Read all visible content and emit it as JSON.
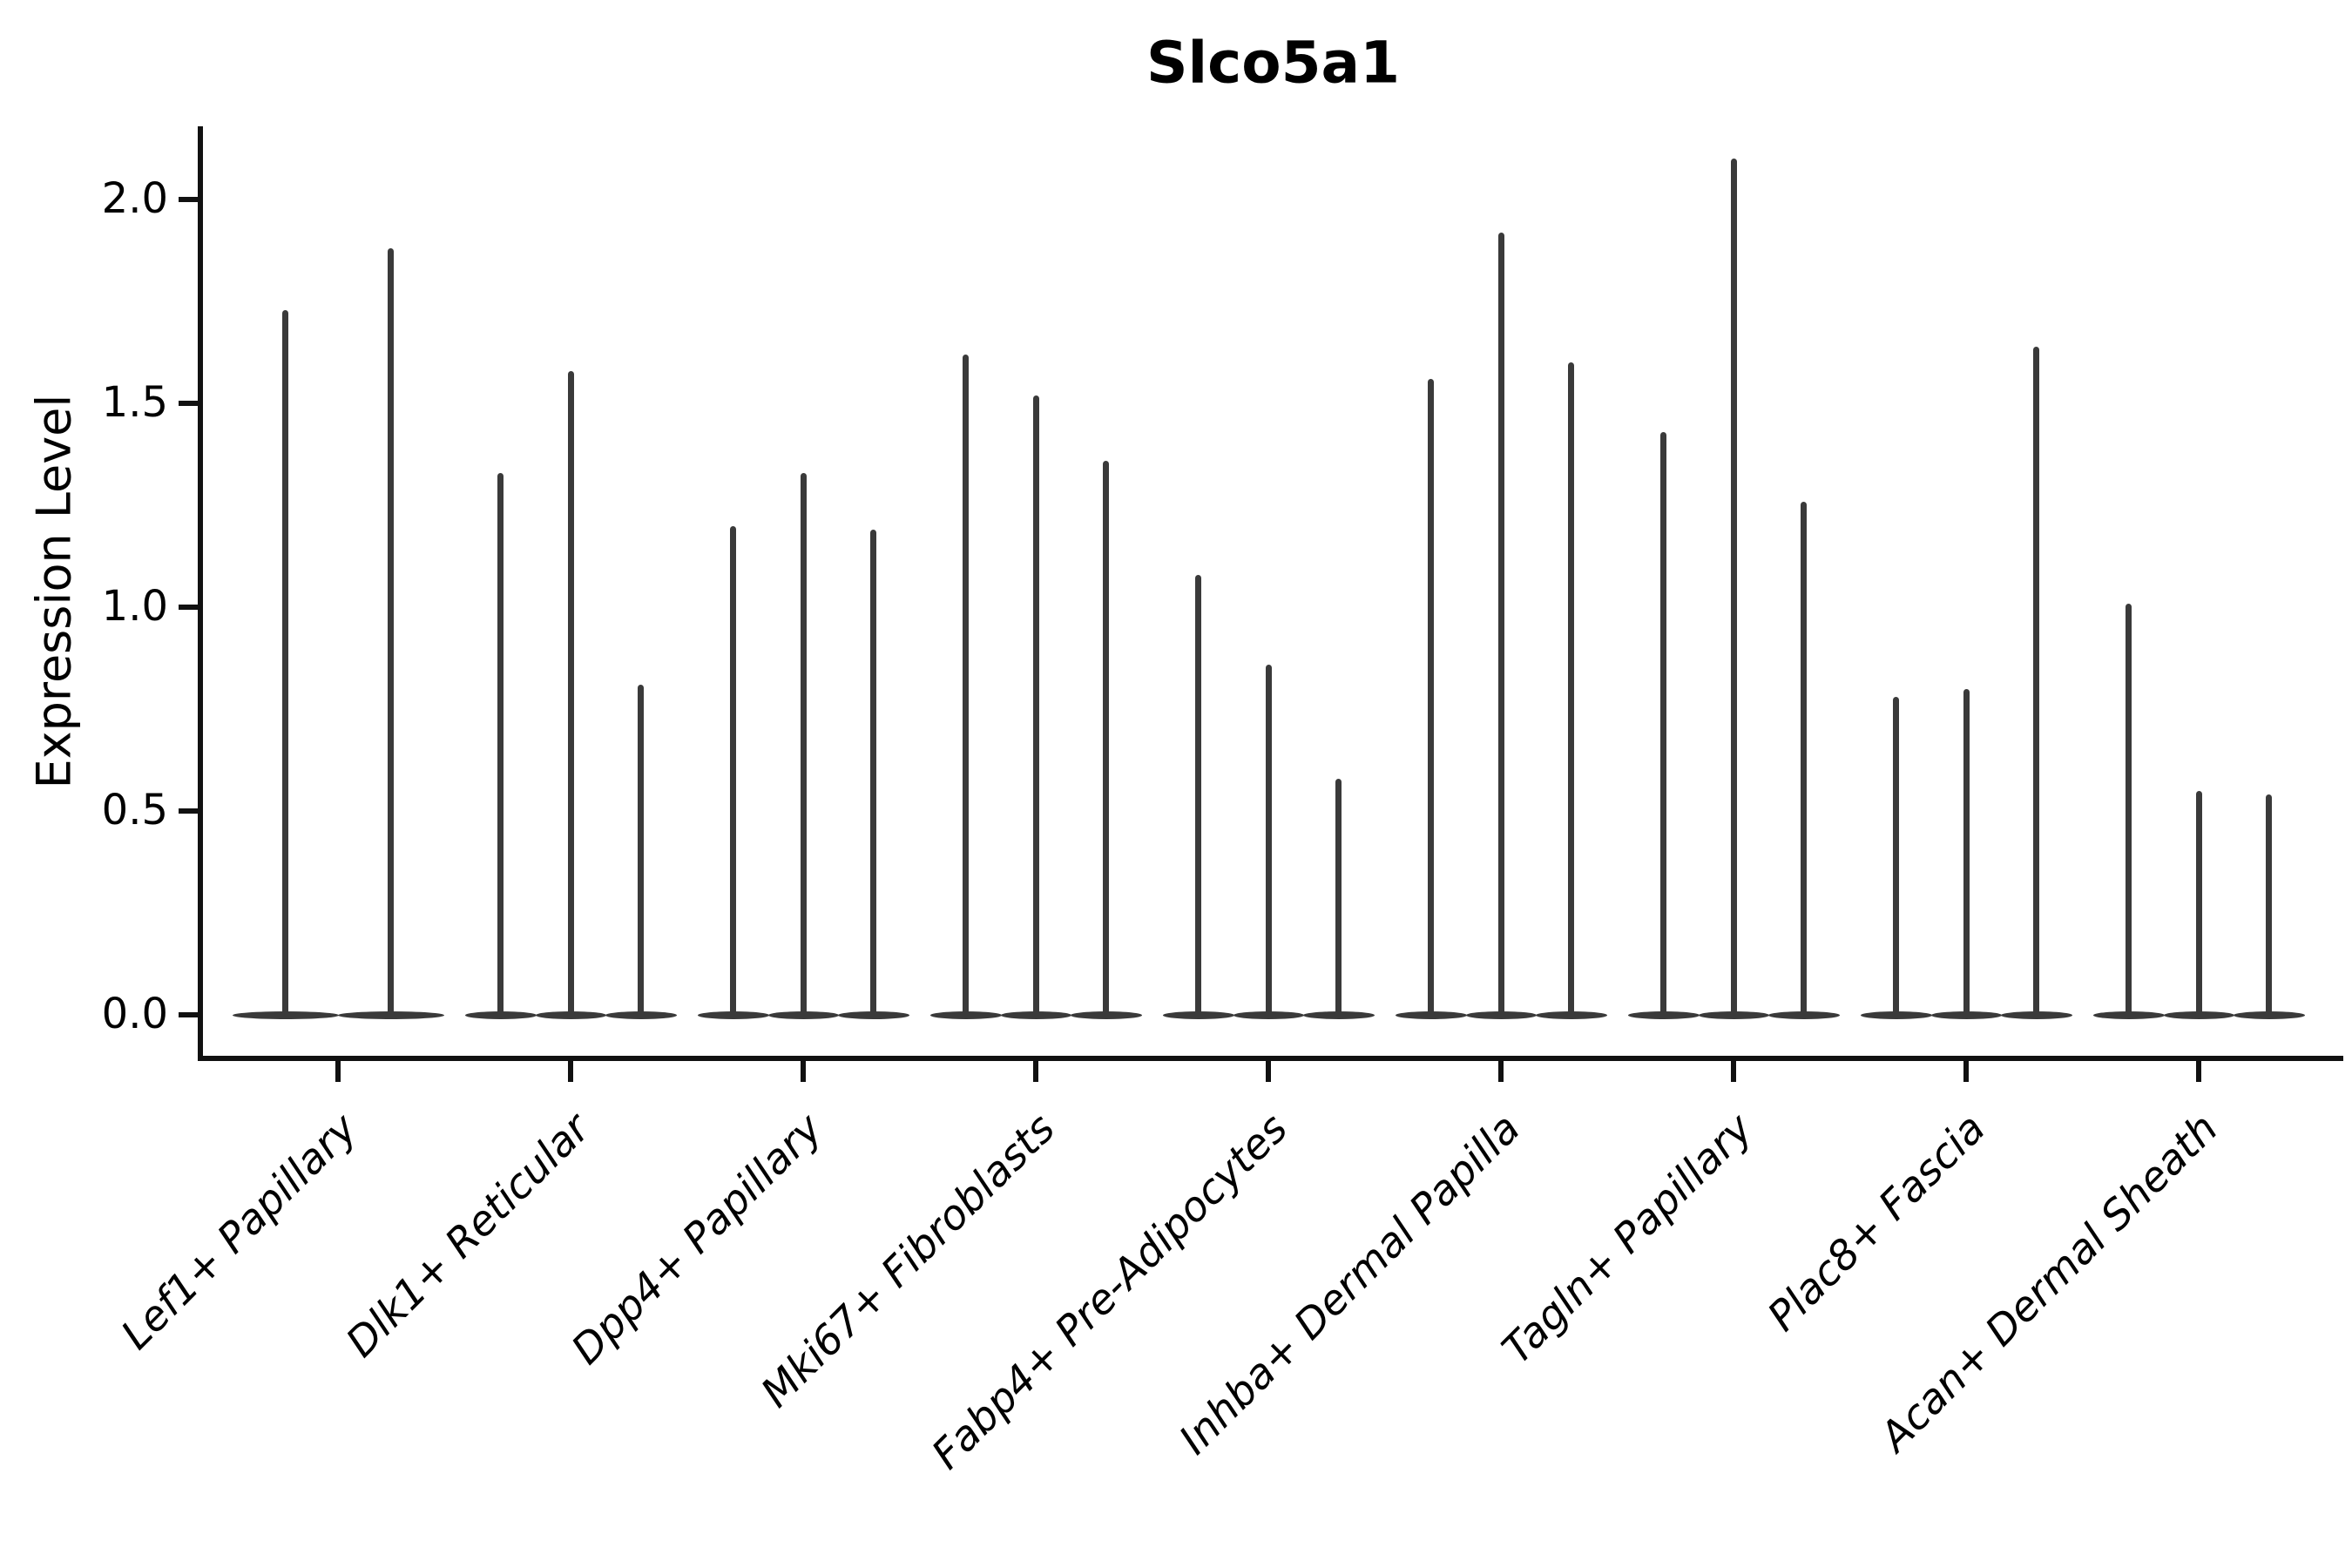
{
  "chart_data": {
    "type": "violin",
    "title": "Slco5a1",
    "xlabel": "",
    "ylabel": "Expression Level",
    "ylim": [
      -0.1,
      2.18
    ],
    "yticks": [
      0.0,
      0.5,
      1.0,
      1.5,
      2.0
    ],
    "ytick_labels": [
      "0.0",
      "0.5",
      "1.0",
      "1.5",
      "2.0"
    ],
    "grid": false,
    "legend": "none",
    "style": "flat zero-density violins with thin vertical spikes up to each distribution maximum",
    "categories": [
      "Lef1+ Papillary",
      "Dlk1+ Reticular",
      "Dpp4+ Papillary",
      "Mki67+ Fibroblasts",
      "Fabp4+ Pre-Adipocytes",
      "Inhba+ Dermal Papilla",
      "Tagln+ Papillary",
      "Plac8+ Fascia",
      "Acan+ Dermal Sheath"
    ],
    "groups": [
      {
        "label": "Lef1+ Papillary",
        "violin_max_values": [
          1.73,
          1.88
        ]
      },
      {
        "label": "Dlk1+ Reticular",
        "violin_max_values": [
          1.33,
          1.58,
          0.81
        ]
      },
      {
        "label": "Dpp4+ Papillary",
        "violin_max_values": [
          1.2,
          1.33,
          1.19
        ]
      },
      {
        "label": "Mki67+ Fibroblasts",
        "violin_max_values": [
          1.62,
          1.52,
          1.36
        ]
      },
      {
        "label": "Fabp4+ Pre-Adipocytes",
        "violin_max_values": [
          1.08,
          0.86,
          0.58
        ]
      },
      {
        "label": "Inhba+ Dermal Papilla",
        "violin_max_values": [
          1.56,
          1.92,
          1.6
        ]
      },
      {
        "label": "Tagln+ Papillary",
        "violin_max_values": [
          1.43,
          2.1,
          1.26
        ]
      },
      {
        "label": "Plac8+ Fascia",
        "violin_max_values": [
          0.78,
          0.8,
          1.64
        ]
      },
      {
        "label": "Acan+ Dermal Sheath",
        "violin_max_values": [
          1.01,
          0.55,
          0.54
        ]
      }
    ],
    "colors": {
      "violin": "#3a3a3a",
      "axis": "#111111",
      "text": "#000000",
      "background": "#ffffff"
    }
  }
}
